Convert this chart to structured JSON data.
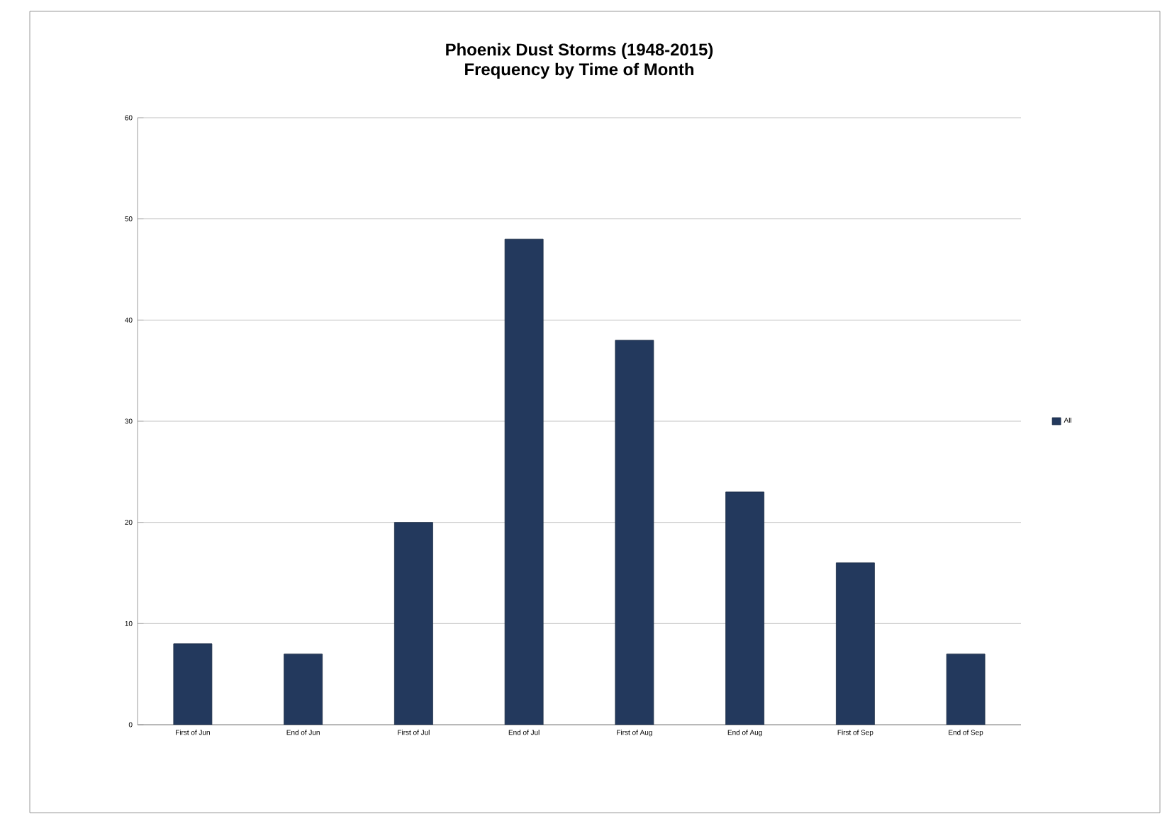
{
  "chart_data": {
    "type": "bar",
    "title": "Phoenix Dust Storms (1948-2015)",
    "subtitle": "Frequency by Time of Month",
    "categories": [
      "First of Jun",
      "End of Jun",
      "First of Jul",
      "End of Jul",
      "First of Aug",
      "End of Aug",
      "First of Sep",
      "End of Sep"
    ],
    "series": [
      {
        "name": "All",
        "color": "#23395d",
        "values": [
          8,
          7,
          20,
          48,
          38,
          23,
          16,
          7
        ]
      }
    ],
    "ylim": [
      0,
      60
    ],
    "yticks": [
      0,
      10,
      20,
      30,
      40,
      50,
      60
    ],
    "grid": "y",
    "legend": "right"
  }
}
